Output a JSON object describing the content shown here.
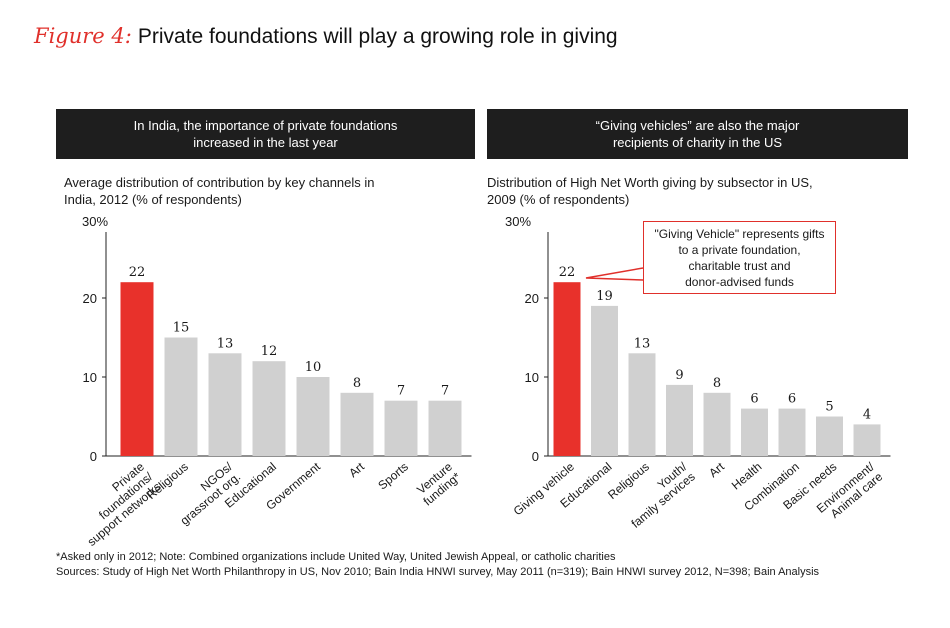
{
  "figure": {
    "label": "Figure 4:",
    "title": "Private foundations will play a growing role in giving"
  },
  "colors": {
    "highlight": "#e8312b",
    "bar": "#d0d0d0",
    "header_bg": "#1e1e1e",
    "callout_border": "#e0302b"
  },
  "chart_data": [
    {
      "type": "bar",
      "header": [
        "In India, the importance of private foundations",
        "increased in the last year"
      ],
      "subtitle": [
        "Average distribution of contribution by key channels in",
        "India, 2012 (% of respondents)"
      ],
      "ymax_label": "30%",
      "ylim": [
        0,
        30
      ],
      "yticks": [
        0,
        10,
        20
      ],
      "categories": [
        [
          "Private",
          "foundations/",
          "support networks"
        ],
        [
          "Religious"
        ],
        [
          "NGOs/",
          "grassroot org."
        ],
        [
          "Educational"
        ],
        [
          "Government"
        ],
        [
          "Art"
        ],
        [
          "Sports"
        ],
        [
          "Venture",
          "funding*"
        ]
      ],
      "values": [
        22,
        15,
        13,
        12,
        10,
        8,
        7,
        7
      ],
      "highlight_index": 0
    },
    {
      "type": "bar",
      "header": [
        "“Giving vehicles” are also the major",
        "recipients of charity in the US"
      ],
      "subtitle": [
        "Distribution of High Net Worth giving by subsector in US,",
        "2009 (% of respondents)"
      ],
      "ymax_label": "30%",
      "ylim": [
        0,
        30
      ],
      "yticks": [
        0,
        10,
        20
      ],
      "categories": [
        [
          "Giving vehicle"
        ],
        [
          "Educational"
        ],
        [
          "Religious"
        ],
        [
          "Youth/",
          "family services"
        ],
        [
          "Art"
        ],
        [
          "Health"
        ],
        [
          "Combination"
        ],
        [
          "Basic needs"
        ],
        [
          "Environment/",
          "Animal care"
        ]
      ],
      "values": [
        22,
        19,
        13,
        9,
        8,
        6,
        6,
        5,
        4
      ],
      "highlight_index": 0,
      "annotation": [
        "\"Giving Vehicle\"  represents gifts",
        "to a private foundation,",
        "charitable trust and",
        "donor-advised funds"
      ]
    }
  ],
  "footnote": [
    "*Asked only in 2012; Note: Combined organizations include United Way, United Jewish Appeal, or catholic charities",
    "Sources: Study of High Net Worth Philanthropy in US, Nov 2010; Bain India HNWI survey, May 2011 (n=319); Bain HNWI survey 2012, N=398; Bain Analysis"
  ]
}
